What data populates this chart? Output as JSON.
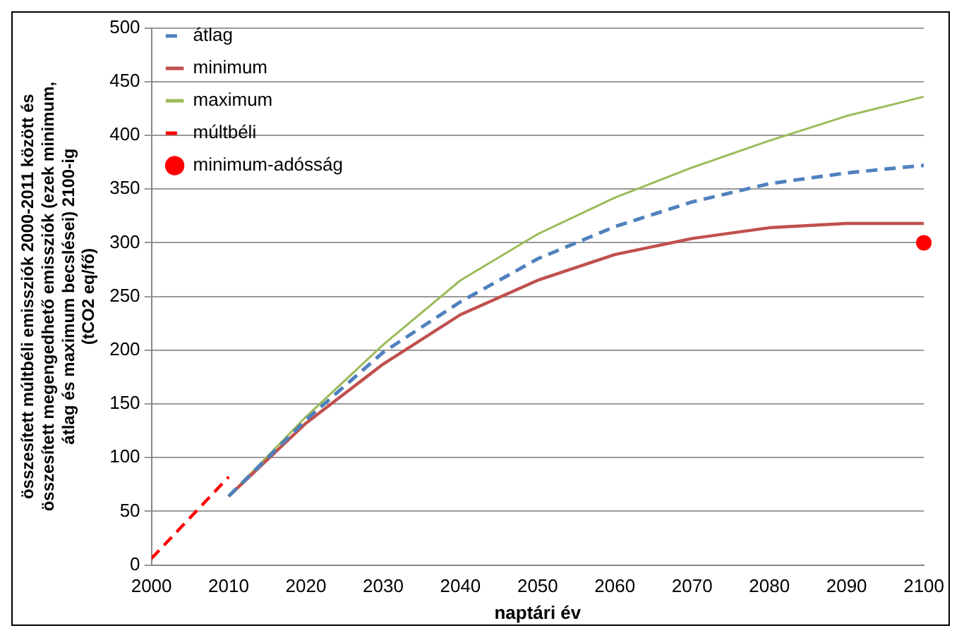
{
  "chart_data": {
    "type": "line",
    "xlabel": "naptári év",
    "ylabel": "összesített múltbéli emissziók 2000-2011 között és\nösszesített megengedhető emissziók (ezek minimum,\nátlag és maximum becslései) 2100-ig\n(tCO2 eq/fő)",
    "x": [
      2010,
      2020,
      2030,
      2040,
      2050,
      2060,
      2070,
      2080,
      2090,
      2100
    ],
    "series": [
      {
        "name": "átlag",
        "type": "line",
        "line_style": "dashed",
        "color": "#4f81bd",
        "values": [
          64,
          135,
          198,
          245,
          285,
          315,
          338,
          355,
          365,
          372
        ]
      },
      {
        "name": "minimum",
        "type": "line",
        "line_style": "solid",
        "color": "#c0504d",
        "values": [
          64,
          132,
          187,
          233,
          265,
          289,
          304,
          314,
          318,
          318
        ]
      },
      {
        "name": "maximum",
        "type": "line",
        "line_style": "solid",
        "color": "#9bbb59",
        "values": [
          64,
          138,
          205,
          265,
          308,
          342,
          370,
          395,
          418,
          436
        ]
      },
      {
        "name": "múltbéli",
        "type": "line",
        "line_style": "dashed",
        "color": "#ff0000",
        "x": [
          2000,
          2010
        ],
        "values": [
          6,
          82
        ]
      },
      {
        "name": "minimum-adósság",
        "type": "scatter",
        "marker": "circle",
        "color": "#ff0000",
        "x": [
          2100
        ],
        "values": [
          300
        ]
      }
    ],
    "xlim": [
      2000,
      2100
    ],
    "xticks": [
      2000,
      2010,
      2020,
      2030,
      2040,
      2050,
      2060,
      2070,
      2080,
      2090,
      2100
    ],
    "ylim": [
      0,
      500
    ],
    "yticks": [
      0,
      50,
      100,
      150,
      200,
      250,
      300,
      350,
      400,
      450,
      500
    ],
    "grid": "y",
    "legend": "top left"
  }
}
